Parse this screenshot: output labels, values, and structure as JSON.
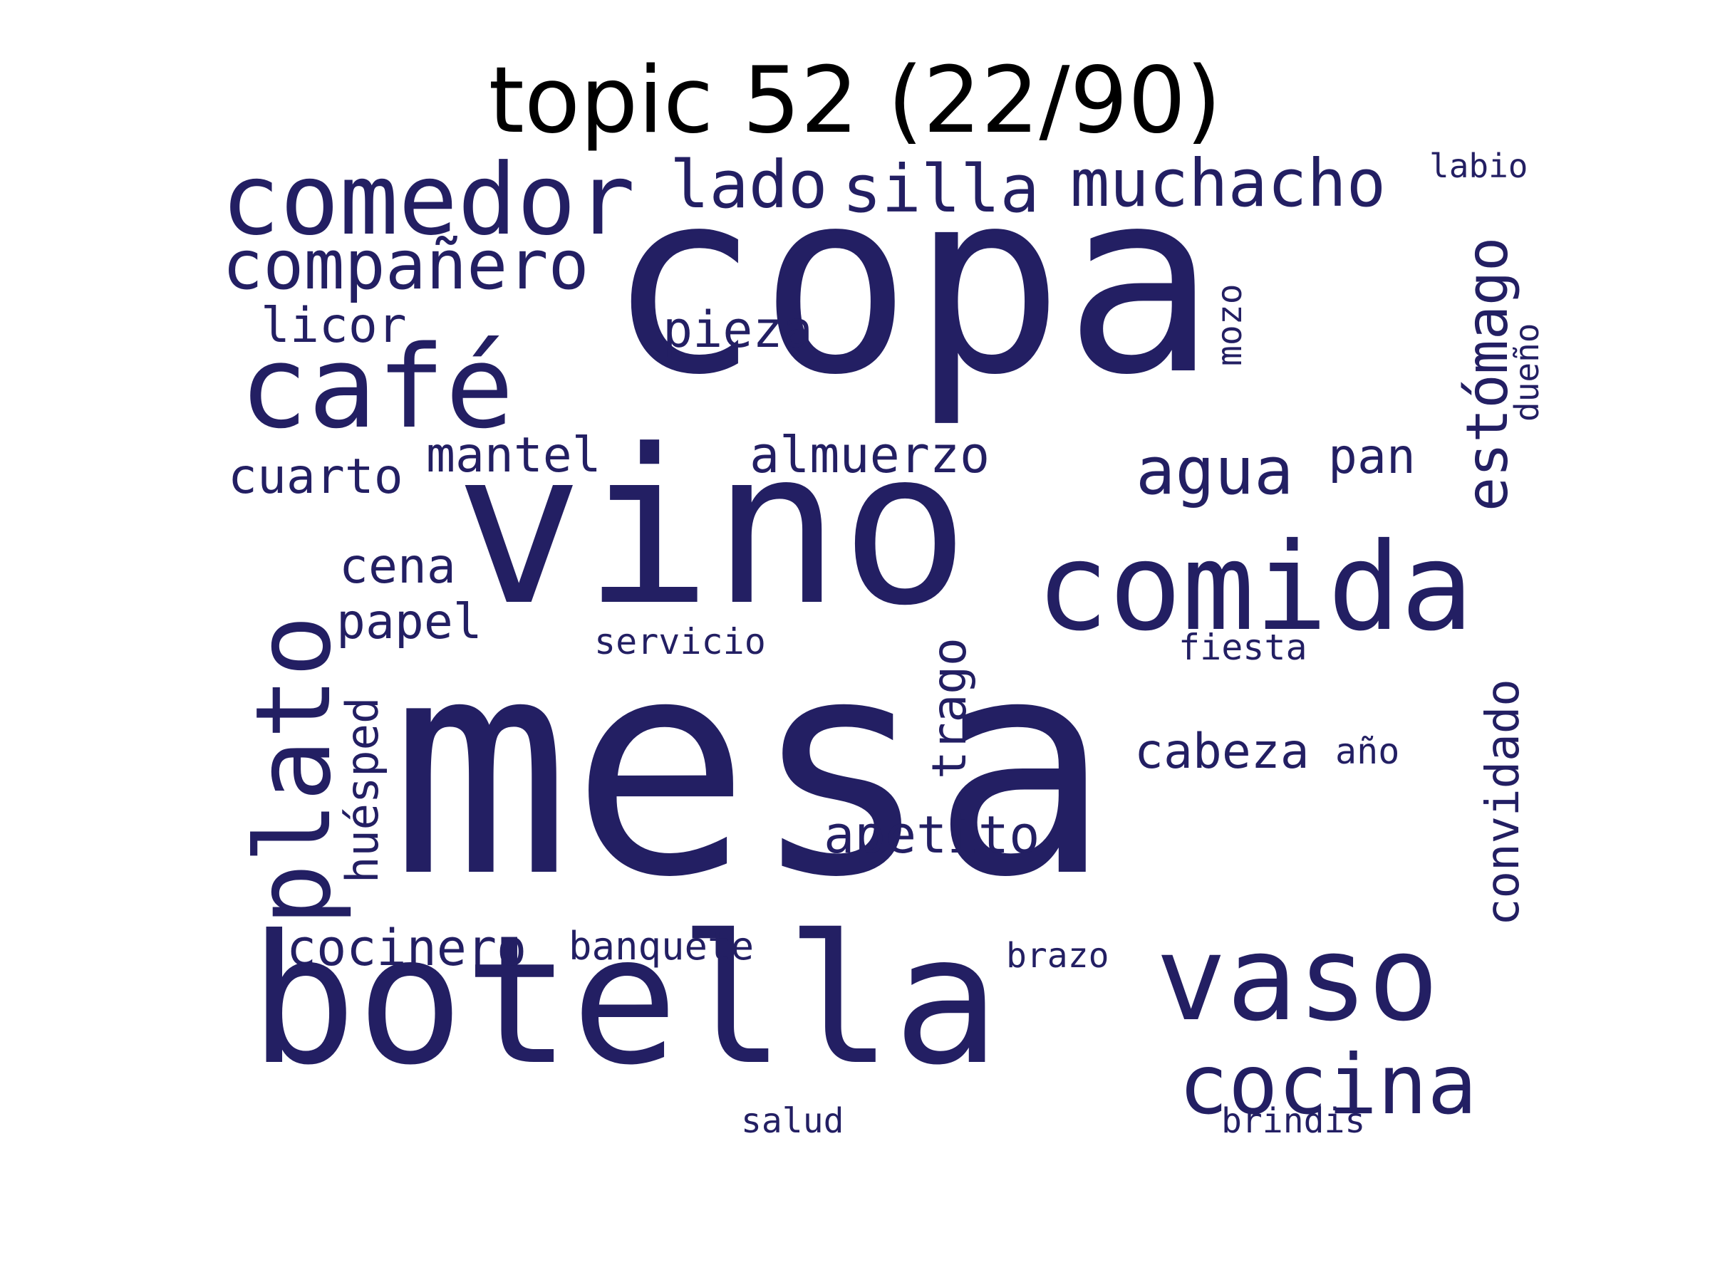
{
  "title": "topic 52 (22/90)",
  "colors": {
    "word": "#231f63",
    "title": "#000000",
    "background": "#ffffff"
  },
  "words": {
    "mesa": "mesa",
    "copa": "copa",
    "vino": "vino",
    "botella": "botella",
    "comida": "comida",
    "plato": "plato",
    "comedor": "comedor",
    "cafe": "café",
    "vaso": "vaso",
    "cocina": "cocina",
    "companero": "compañero",
    "muchacho": "muchacho",
    "silla": "silla",
    "lado": "lado",
    "estomago": "estómago",
    "agua": "agua",
    "convidado": "convidado",
    "almuerzo": "almuerzo",
    "apetito": "apetito",
    "cocinero": "cocinero",
    "cabeza": "cabeza",
    "pieza": "pieza",
    "licor": "licor",
    "mantel": "mantel",
    "cuarto": "cuarto",
    "trago": "trago",
    "huesped": "huésped",
    "papel": "papel",
    "cena": "cena",
    "pan": "pan",
    "banquete": "banquete",
    "servicio": "servicio",
    "fiesta": "fiesta",
    "mozo": "mozo",
    "labio": "labio",
    "dueno": "dueño",
    "ano": "año",
    "brazo": "brazo",
    "salud": "salud",
    "brindis": "brindis"
  }
}
